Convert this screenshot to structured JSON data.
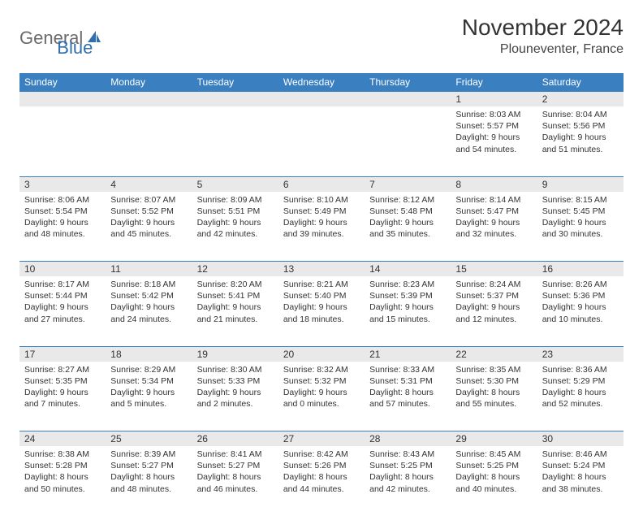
{
  "brand": {
    "part1": "General",
    "part2": "Blue"
  },
  "title": "November 2024",
  "location": "Plouneventer, France",
  "colors": {
    "header_bg": "#3a7fc0",
    "header_text": "#ffffff",
    "daynum_bg": "#e9e9e9",
    "border": "#3a7fc0",
    "logo_gray": "#6b6b6b",
    "logo_blue": "#2f6fad"
  },
  "weekdays": [
    "Sunday",
    "Monday",
    "Tuesday",
    "Wednesday",
    "Thursday",
    "Friday",
    "Saturday"
  ],
  "weeks": [
    [
      null,
      null,
      null,
      null,
      null,
      {
        "n": "1",
        "sr": "Sunrise: 8:03 AM",
        "ss": "Sunset: 5:57 PM",
        "d1": "Daylight: 9 hours",
        "d2": "and 54 minutes."
      },
      {
        "n": "2",
        "sr": "Sunrise: 8:04 AM",
        "ss": "Sunset: 5:56 PM",
        "d1": "Daylight: 9 hours",
        "d2": "and 51 minutes."
      }
    ],
    [
      {
        "n": "3",
        "sr": "Sunrise: 8:06 AM",
        "ss": "Sunset: 5:54 PM",
        "d1": "Daylight: 9 hours",
        "d2": "and 48 minutes."
      },
      {
        "n": "4",
        "sr": "Sunrise: 8:07 AM",
        "ss": "Sunset: 5:52 PM",
        "d1": "Daylight: 9 hours",
        "d2": "and 45 minutes."
      },
      {
        "n": "5",
        "sr": "Sunrise: 8:09 AM",
        "ss": "Sunset: 5:51 PM",
        "d1": "Daylight: 9 hours",
        "d2": "and 42 minutes."
      },
      {
        "n": "6",
        "sr": "Sunrise: 8:10 AM",
        "ss": "Sunset: 5:49 PM",
        "d1": "Daylight: 9 hours",
        "d2": "and 39 minutes."
      },
      {
        "n": "7",
        "sr": "Sunrise: 8:12 AM",
        "ss": "Sunset: 5:48 PM",
        "d1": "Daylight: 9 hours",
        "d2": "and 35 minutes."
      },
      {
        "n": "8",
        "sr": "Sunrise: 8:14 AM",
        "ss": "Sunset: 5:47 PM",
        "d1": "Daylight: 9 hours",
        "d2": "and 32 minutes."
      },
      {
        "n": "9",
        "sr": "Sunrise: 8:15 AM",
        "ss": "Sunset: 5:45 PM",
        "d1": "Daylight: 9 hours",
        "d2": "and 30 minutes."
      }
    ],
    [
      {
        "n": "10",
        "sr": "Sunrise: 8:17 AM",
        "ss": "Sunset: 5:44 PM",
        "d1": "Daylight: 9 hours",
        "d2": "and 27 minutes."
      },
      {
        "n": "11",
        "sr": "Sunrise: 8:18 AM",
        "ss": "Sunset: 5:42 PM",
        "d1": "Daylight: 9 hours",
        "d2": "and 24 minutes."
      },
      {
        "n": "12",
        "sr": "Sunrise: 8:20 AM",
        "ss": "Sunset: 5:41 PM",
        "d1": "Daylight: 9 hours",
        "d2": "and 21 minutes."
      },
      {
        "n": "13",
        "sr": "Sunrise: 8:21 AM",
        "ss": "Sunset: 5:40 PM",
        "d1": "Daylight: 9 hours",
        "d2": "and 18 minutes."
      },
      {
        "n": "14",
        "sr": "Sunrise: 8:23 AM",
        "ss": "Sunset: 5:39 PM",
        "d1": "Daylight: 9 hours",
        "d2": "and 15 minutes."
      },
      {
        "n": "15",
        "sr": "Sunrise: 8:24 AM",
        "ss": "Sunset: 5:37 PM",
        "d1": "Daylight: 9 hours",
        "d2": "and 12 minutes."
      },
      {
        "n": "16",
        "sr": "Sunrise: 8:26 AM",
        "ss": "Sunset: 5:36 PM",
        "d1": "Daylight: 9 hours",
        "d2": "and 10 minutes."
      }
    ],
    [
      {
        "n": "17",
        "sr": "Sunrise: 8:27 AM",
        "ss": "Sunset: 5:35 PM",
        "d1": "Daylight: 9 hours",
        "d2": "and 7 minutes."
      },
      {
        "n": "18",
        "sr": "Sunrise: 8:29 AM",
        "ss": "Sunset: 5:34 PM",
        "d1": "Daylight: 9 hours",
        "d2": "and 5 minutes."
      },
      {
        "n": "19",
        "sr": "Sunrise: 8:30 AM",
        "ss": "Sunset: 5:33 PM",
        "d1": "Daylight: 9 hours",
        "d2": "and 2 minutes."
      },
      {
        "n": "20",
        "sr": "Sunrise: 8:32 AM",
        "ss": "Sunset: 5:32 PM",
        "d1": "Daylight: 9 hours",
        "d2": "and 0 minutes."
      },
      {
        "n": "21",
        "sr": "Sunrise: 8:33 AM",
        "ss": "Sunset: 5:31 PM",
        "d1": "Daylight: 8 hours",
        "d2": "and 57 minutes."
      },
      {
        "n": "22",
        "sr": "Sunrise: 8:35 AM",
        "ss": "Sunset: 5:30 PM",
        "d1": "Daylight: 8 hours",
        "d2": "and 55 minutes."
      },
      {
        "n": "23",
        "sr": "Sunrise: 8:36 AM",
        "ss": "Sunset: 5:29 PM",
        "d1": "Daylight: 8 hours",
        "d2": "and 52 minutes."
      }
    ],
    [
      {
        "n": "24",
        "sr": "Sunrise: 8:38 AM",
        "ss": "Sunset: 5:28 PM",
        "d1": "Daylight: 8 hours",
        "d2": "and 50 minutes."
      },
      {
        "n": "25",
        "sr": "Sunrise: 8:39 AM",
        "ss": "Sunset: 5:27 PM",
        "d1": "Daylight: 8 hours",
        "d2": "and 48 minutes."
      },
      {
        "n": "26",
        "sr": "Sunrise: 8:41 AM",
        "ss": "Sunset: 5:27 PM",
        "d1": "Daylight: 8 hours",
        "d2": "and 46 minutes."
      },
      {
        "n": "27",
        "sr": "Sunrise: 8:42 AM",
        "ss": "Sunset: 5:26 PM",
        "d1": "Daylight: 8 hours",
        "d2": "and 44 minutes."
      },
      {
        "n": "28",
        "sr": "Sunrise: 8:43 AM",
        "ss": "Sunset: 5:25 PM",
        "d1": "Daylight: 8 hours",
        "d2": "and 42 minutes."
      },
      {
        "n": "29",
        "sr": "Sunrise: 8:45 AM",
        "ss": "Sunset: 5:25 PM",
        "d1": "Daylight: 8 hours",
        "d2": "and 40 minutes."
      },
      {
        "n": "30",
        "sr": "Sunrise: 8:46 AM",
        "ss": "Sunset: 5:24 PM",
        "d1": "Daylight: 8 hours",
        "d2": "and 38 minutes."
      }
    ]
  ]
}
